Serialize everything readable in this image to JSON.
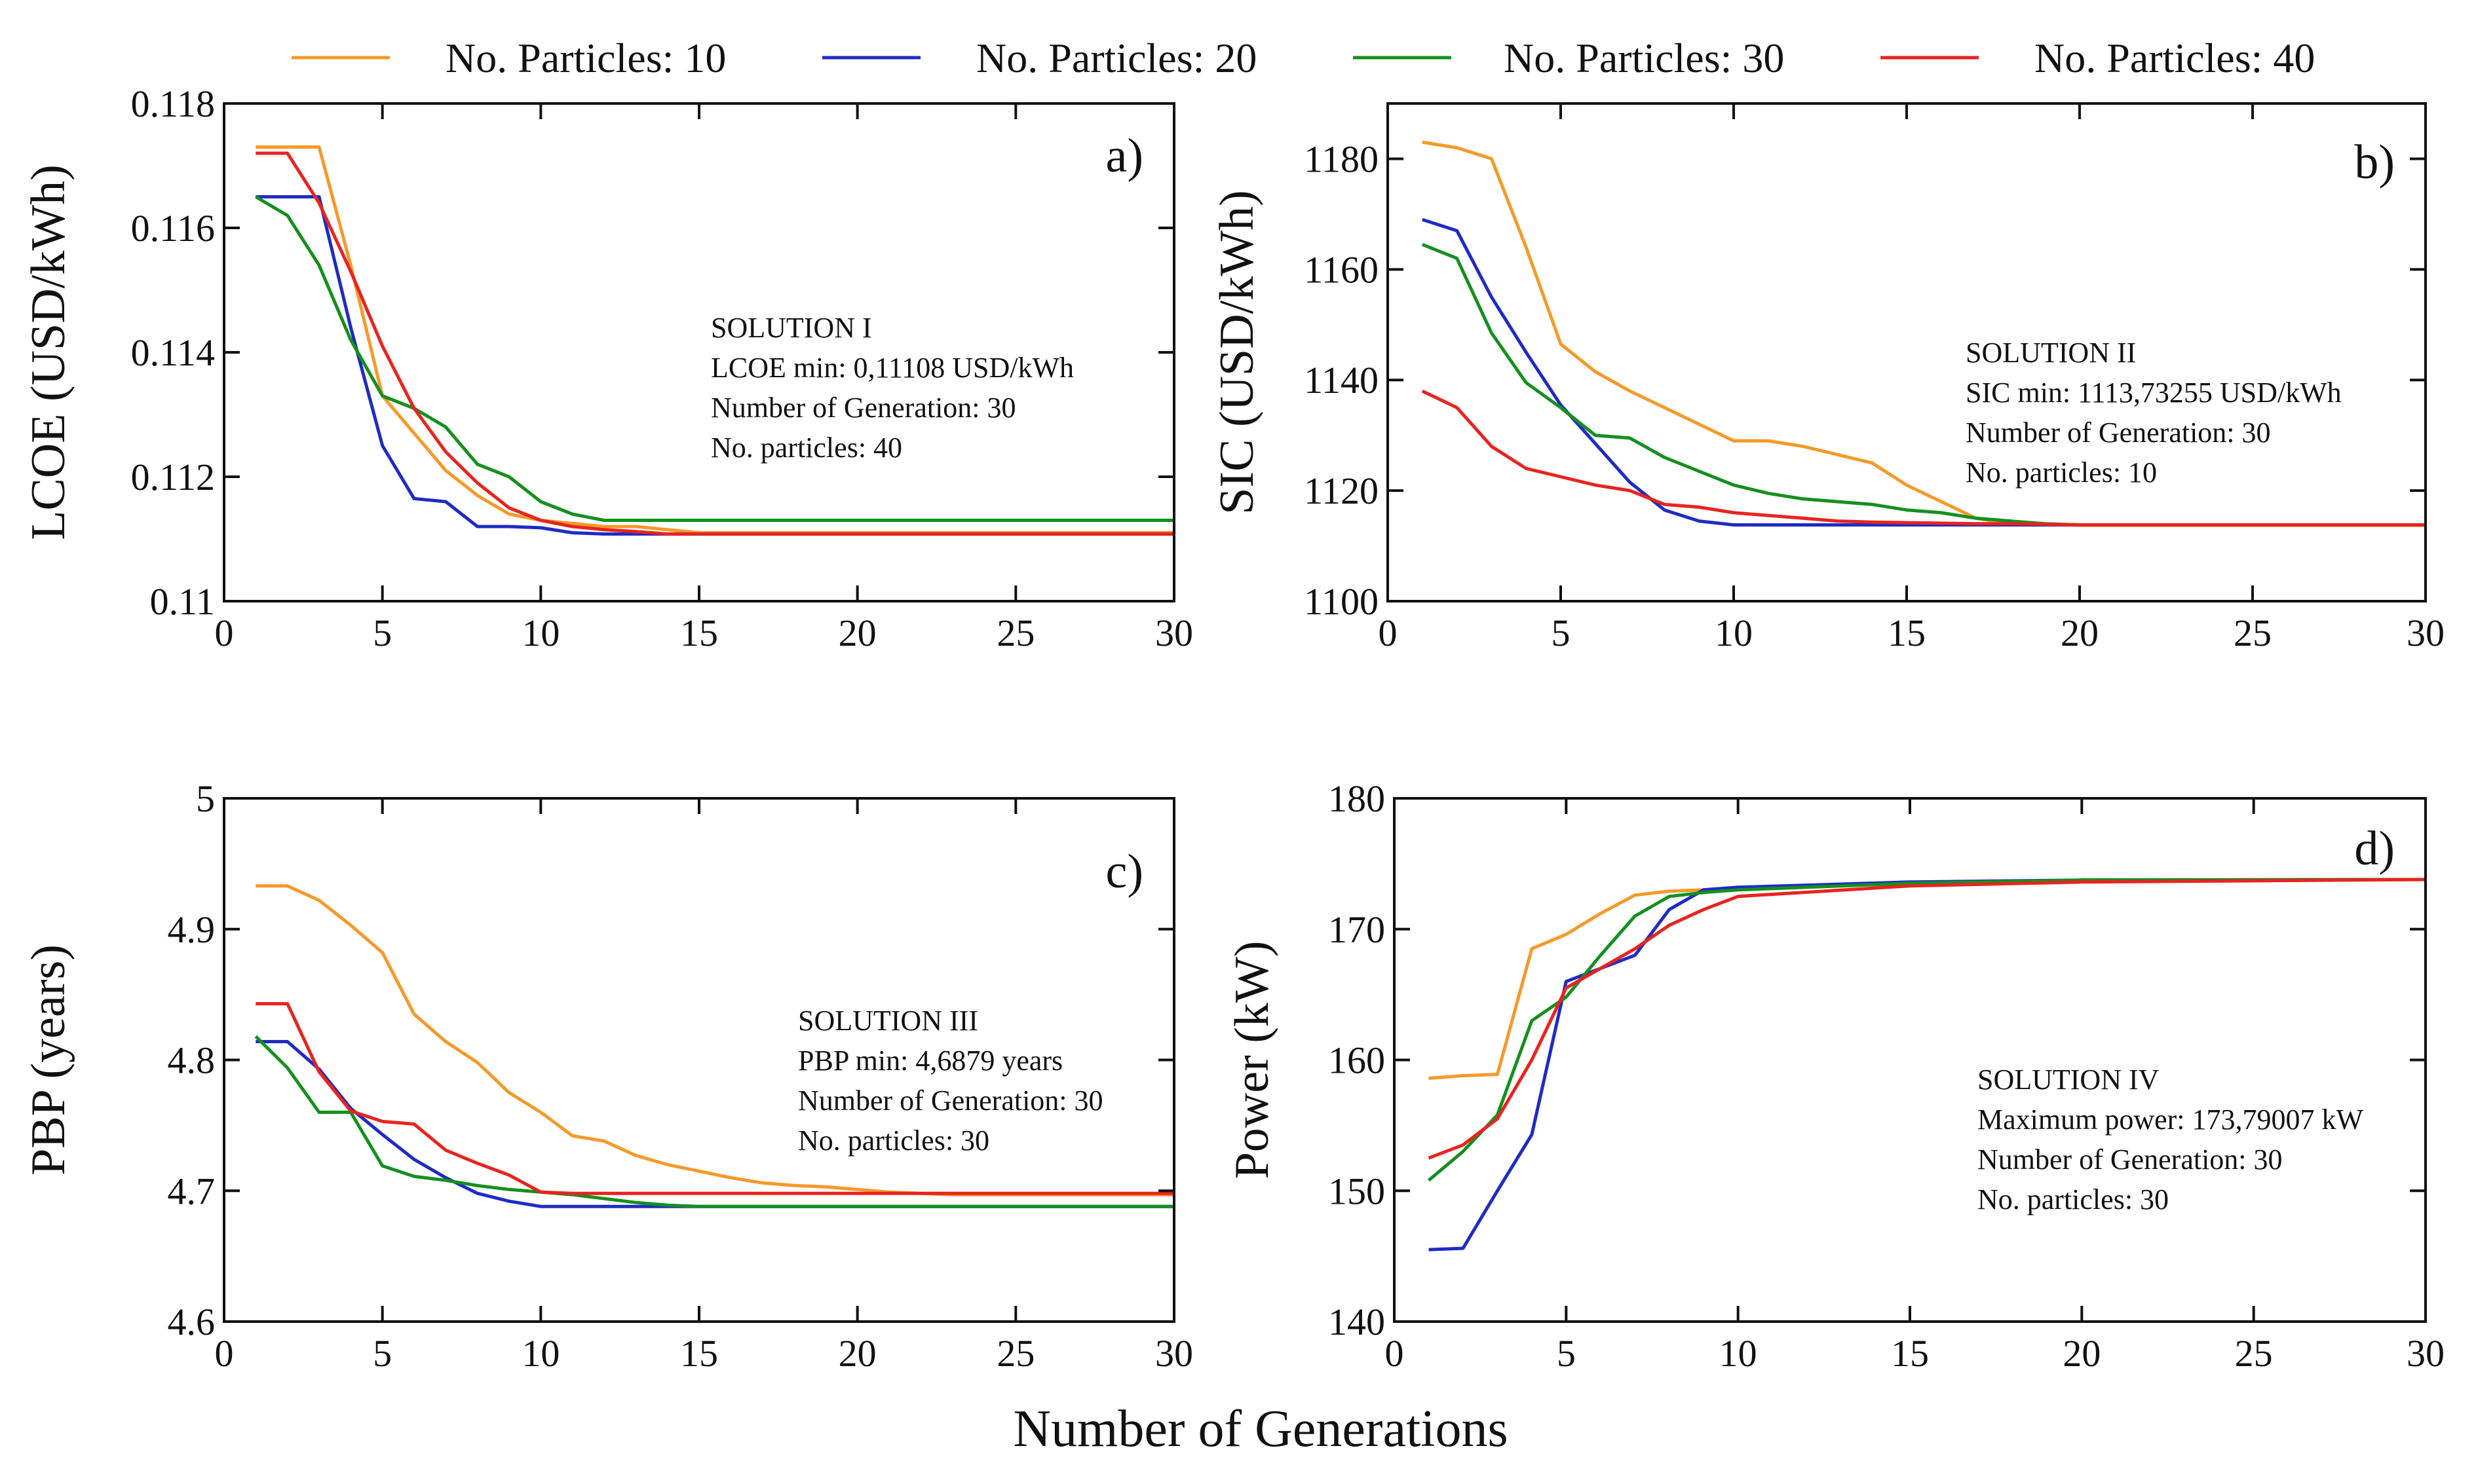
{
  "legend": [
    {
      "label": "No. Particles: 10",
      "color": "#F59A2A"
    },
    {
      "label": "No. Particles: 20",
      "color": "#1F2BC4"
    },
    {
      "label": "No. Particles: 30",
      "color": "#14901E"
    },
    {
      "label": "No. Particles: 40",
      "color": "#E8241F"
    }
  ],
  "common_xlabel": "Number of Generations",
  "chart_data": [
    {
      "type": "line",
      "panel_label": "a)",
      "ylabel": "LCOE (USD/kWh)",
      "xlim": [
        0,
        30
      ],
      "ylim": [
        0.11,
        0.118
      ],
      "xticks": [
        0,
        5,
        10,
        15,
        20,
        25,
        30
      ],
      "xtick_labels": [
        "0",
        "5",
        "10",
        "15",
        "20",
        "25",
        "30"
      ],
      "yticks": [
        0.11,
        0.112,
        0.114,
        0.116,
        0.118
      ],
      "ytick_labels": [
        "0.11",
        "0.112",
        "0.114",
        "0.116",
        "0.118"
      ],
      "annotation": [
        "SOLUTION I",
        "LCOE min: 0,11108 USD/kWh",
        "Number of Generation: 30",
        "No. particles: 40"
      ],
      "series": [
        {
          "name": "No. Particles: 10",
          "x": [
            1,
            2,
            3,
            4,
            5,
            6,
            7,
            8,
            9,
            10,
            11,
            12,
            13,
            14,
            15,
            30
          ],
          "y": [
            0.1173,
            0.1173,
            0.1173,
            0.1154,
            0.1133,
            0.1127,
            0.1121,
            0.1117,
            0.1114,
            0.1113,
            0.11125,
            0.1112,
            0.1112,
            0.11115,
            0.1111,
            0.1111
          ]
        },
        {
          "name": "No. Particles: 20",
          "x": [
            1,
            2,
            3,
            4,
            5,
            6,
            7,
            8,
            9,
            10,
            11,
            12,
            13,
            30
          ],
          "y": [
            0.1165,
            0.1165,
            0.1165,
            0.1144,
            0.1125,
            0.11165,
            0.1116,
            0.1112,
            0.1112,
            0.11118,
            0.1111,
            0.11108,
            0.11108,
            0.11108
          ]
        },
        {
          "name": "No. Particles: 30",
          "x": [
            1,
            2,
            3,
            4,
            5,
            6,
            7,
            8,
            9,
            10,
            11,
            12,
            30
          ],
          "y": [
            0.1165,
            0.1162,
            0.1154,
            0.1142,
            0.1133,
            0.1131,
            0.1128,
            0.1122,
            0.112,
            0.1116,
            0.1114,
            0.1113,
            0.1113
          ]
        },
        {
          "name": "No. Particles: 40",
          "x": [
            1,
            2,
            3,
            4,
            5,
            6,
            7,
            8,
            9,
            10,
            11,
            12,
            13,
            14,
            30
          ],
          "y": [
            0.1172,
            0.1172,
            0.1164,
            0.1153,
            0.1141,
            0.1131,
            0.1124,
            0.1119,
            0.1115,
            0.1113,
            0.1112,
            0.11115,
            0.11112,
            0.11108,
            0.11108
          ]
        }
      ]
    },
    {
      "type": "line",
      "panel_label": "b)",
      "ylabel": "SIC (USD/kWh)",
      "xlim": [
        0,
        30
      ],
      "ylim": [
        1100,
        1190
      ],
      "xticks": [
        0,
        5,
        10,
        15,
        20,
        25,
        30
      ],
      "xtick_labels": [
        "0",
        "5",
        "10",
        "15",
        "20",
        "25",
        "30"
      ],
      "yticks": [
        1100,
        1120,
        1140,
        1160,
        1180
      ],
      "ytick_labels": [
        "1100",
        "1120",
        "1140",
        "1160",
        "1180"
      ],
      "annotation": [
        "SOLUTION II",
        "SIC min: 1113,73255 USD/kWh",
        "Number of Generation: 30",
        "No. particles: 10"
      ],
      "series": [
        {
          "name": "No. Particles: 10",
          "x": [
            1,
            2,
            3,
            4,
            5,
            6,
            7,
            8,
            9,
            10,
            11,
            12,
            13,
            14,
            15,
            16,
            17,
            18,
            19,
            20,
            30
          ],
          "y": [
            1183,
            1182,
            1180,
            1164,
            1146.5,
            1141.5,
            1138,
            1135,
            1132,
            1129,
            1129,
            1128,
            1126.5,
            1125,
            1121,
            1118,
            1115,
            1114,
            1114,
            1113.73,
            1113.73
          ]
        },
        {
          "name": "No. Particles: 20",
          "x": [
            1,
            2,
            3,
            4,
            5,
            6,
            7,
            8,
            9,
            10,
            11,
            12,
            13,
            14,
            15,
            16,
            17,
            18,
            30
          ],
          "y": [
            1169,
            1167,
            1155,
            1145,
            1135.5,
            1128.5,
            1121.5,
            1116.5,
            1114.5,
            1113.8,
            1113.8,
            1113.8,
            1113.8,
            1113.8,
            1113.8,
            1113.8,
            1113.8,
            1113.8,
            1113.8
          ]
        },
        {
          "name": "No. Particles: 30",
          "x": [
            1,
            2,
            3,
            4,
            5,
            6,
            7,
            8,
            9,
            10,
            11,
            12,
            13,
            14,
            15,
            16,
            17,
            18,
            19,
            20,
            30
          ],
          "y": [
            1164.5,
            1162,
            1148.5,
            1139.5,
            1135,
            1130,
            1129.5,
            1126,
            1123.5,
            1121,
            1119.5,
            1118.5,
            1118,
            1117.5,
            1116.5,
            1116,
            1115,
            1114.5,
            1114,
            1113.8,
            1113.8
          ]
        },
        {
          "name": "No. Particles: 40",
          "x": [
            1,
            2,
            3,
            4,
            5,
            6,
            7,
            8,
            9,
            10,
            11,
            12,
            13,
            14,
            15,
            16,
            17,
            18,
            19,
            20,
            30
          ],
          "y": [
            1138,
            1135,
            1128,
            1124,
            1122.5,
            1121,
            1120,
            1117.5,
            1117,
            1116,
            1115.5,
            1115,
            1114.5,
            1114.3,
            1114.2,
            1114.1,
            1114,
            1114,
            1113.9,
            1113.8,
            1113.8
          ]
        }
      ]
    },
    {
      "type": "line",
      "panel_label": "c)",
      "ylabel": "PBP (years)",
      "xlim": [
        0,
        30
      ],
      "ylim": [
        4.6,
        5.0
      ],
      "xticks": [
        0,
        5,
        10,
        15,
        20,
        25,
        30
      ],
      "xtick_labels": [
        "0",
        "5",
        "10",
        "15",
        "20",
        "25",
        "30"
      ],
      "yticks": [
        4.6,
        4.7,
        4.8,
        4.9,
        5.0
      ],
      "ytick_labels": [
        "4.6",
        "4.7",
        "4.8",
        "4.9",
        "5"
      ],
      "annotation": [
        "SOLUTION III",
        "PBP min: 4,6879 years",
        "Number of Generation: 30",
        "No. particles: 30"
      ],
      "series": [
        {
          "name": "No. Particles: 10",
          "x": [
            1,
            2,
            3,
            4,
            5,
            6,
            7,
            8,
            9,
            10,
            11,
            12,
            13,
            14,
            15,
            16,
            17,
            18,
            19,
            20,
            21,
            22,
            23,
            30
          ],
          "y": [
            4.933,
            4.933,
            4.922,
            4.903,
            4.882,
            4.835,
            4.814,
            4.798,
            4.775,
            4.76,
            4.742,
            4.738,
            4.727,
            4.72,
            4.715,
            4.71,
            4.706,
            4.704,
            4.703,
            4.701,
            4.699,
            4.698,
            4.697,
            4.697
          ]
        },
        {
          "name": "No. Particles: 20",
          "x": [
            1,
            2,
            3,
            4,
            5,
            6,
            7,
            8,
            9,
            10,
            11,
            12,
            13,
            14,
            15,
            30
          ],
          "y": [
            4.814,
            4.814,
            4.793,
            4.763,
            4.743,
            4.724,
            4.71,
            4.698,
            4.692,
            4.688,
            4.688,
            4.688,
            4.688,
            4.688,
            4.688,
            4.688
          ]
        },
        {
          "name": "No. Particles: 30",
          "x": [
            1,
            2,
            3,
            4,
            5,
            6,
            7,
            8,
            9,
            10,
            11,
            12,
            13,
            14,
            15,
            30
          ],
          "y": [
            4.818,
            4.794,
            4.76,
            4.76,
            4.719,
            4.711,
            4.708,
            4.704,
            4.701,
            4.699,
            4.697,
            4.694,
            4.691,
            4.689,
            4.688,
            4.688
          ]
        },
        {
          "name": "No. Particles: 40",
          "x": [
            1,
            2,
            3,
            4,
            5,
            6,
            7,
            8,
            9,
            10,
            11,
            12,
            13,
            14,
            15,
            30
          ],
          "y": [
            4.843,
            4.843,
            4.791,
            4.761,
            4.753,
            4.751,
            4.731,
            4.721,
            4.712,
            4.699,
            4.698,
            4.698,
            4.698,
            4.698,
            4.698,
            4.698
          ]
        }
      ]
    },
    {
      "type": "line",
      "panel_label": "d)",
      "ylabel": "Power (kW)",
      "xlim": [
        0,
        30
      ],
      "ylim": [
        140,
        180
      ],
      "xticks": [
        0,
        5,
        10,
        15,
        20,
        25,
        30
      ],
      "xtick_labels": [
        "0",
        "5",
        "10",
        "15",
        "20",
        "25",
        "30"
      ],
      "yticks": [
        140,
        150,
        160,
        170,
        180
      ],
      "ytick_labels": [
        "140",
        "150",
        "160",
        "170",
        "180"
      ],
      "annotation": [
        "SOLUTION IV",
        "Maximum power: 173,79007 kW",
        "Number of Generation: 30",
        "No. particles: 30"
      ],
      "series": [
        {
          "name": "No. Particles: 10",
          "x": [
            1,
            2,
            3,
            4,
            5,
            6,
            7,
            8,
            9,
            10,
            15,
            20,
            30
          ],
          "y": [
            158.6,
            158.8,
            158.9,
            168.5,
            169.6,
            171.2,
            172.6,
            172.9,
            173.0,
            173.1,
            173.5,
            173.7,
            173.79
          ]
        },
        {
          "name": "No. Particles: 20",
          "x": [
            1,
            2,
            3,
            4,
            5,
            6,
            7,
            8,
            9,
            10,
            15,
            20,
            30
          ],
          "y": [
            145.5,
            145.6,
            150.0,
            154.3,
            166.0,
            167.0,
            168.0,
            171.5,
            173.0,
            173.2,
            173.6,
            173.75,
            173.79
          ]
        },
        {
          "name": "No. Particles: 30",
          "x": [
            1,
            2,
            3,
            4,
            5,
            6,
            7,
            8,
            9,
            10,
            15,
            20,
            30
          ],
          "y": [
            150.8,
            153.0,
            155.8,
            163.0,
            164.8,
            168.0,
            171.0,
            172.5,
            172.8,
            173.0,
            173.5,
            173.75,
            173.79
          ]
        },
        {
          "name": "No. Particles: 40",
          "x": [
            1,
            2,
            3,
            4,
            5,
            6,
            7,
            8,
            9,
            10,
            15,
            20,
            30
          ],
          "y": [
            152.5,
            153.5,
            155.5,
            160.0,
            165.5,
            167.0,
            168.5,
            170.3,
            171.5,
            172.5,
            173.3,
            173.6,
            173.79
          ]
        }
      ]
    }
  ]
}
